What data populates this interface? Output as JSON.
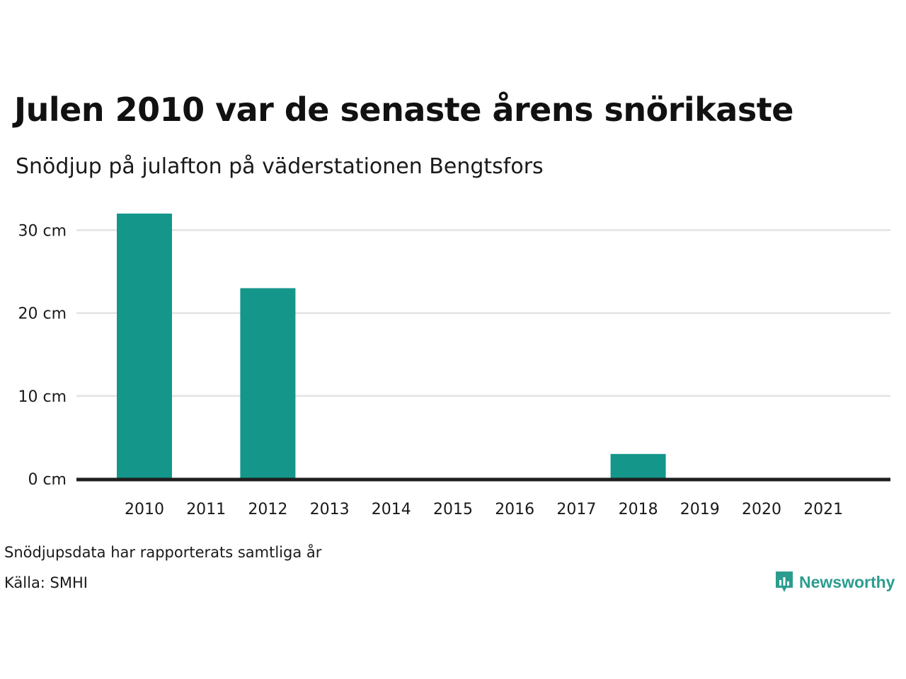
{
  "header": {
    "title": "Julen 2010 var de senaste årens snörikaste",
    "subtitle": "Snödjup på julafton på väderstationen Bengtsfors"
  },
  "footer": {
    "note": "Snödjupsdata har rapporterats samtliga år",
    "source": "Källa: SMHI",
    "brand": "Newsworthy"
  },
  "colors": {
    "bar": "#14968a",
    "gridline": "#e3e3e3",
    "axis": "#1f1f1f",
    "brand": "#2a9d8f"
  },
  "chart_data": {
    "type": "bar",
    "categories": [
      "2010",
      "2011",
      "2012",
      "2013",
      "2014",
      "2015",
      "2016",
      "2017",
      "2018",
      "2019",
      "2020",
      "2021"
    ],
    "series": [
      {
        "values": [
          32,
          0,
          23,
          0,
          0,
          0,
          0,
          0,
          3,
          0,
          0,
          0
        ]
      }
    ],
    "y_ticks": [
      0,
      10,
      20,
      30
    ],
    "y_tick_labels": [
      "0 cm",
      "10 cm",
      "20 cm",
      "30 cm"
    ],
    "ylim": [
      0,
      32
    ],
    "grid": true,
    "legend": "none"
  }
}
